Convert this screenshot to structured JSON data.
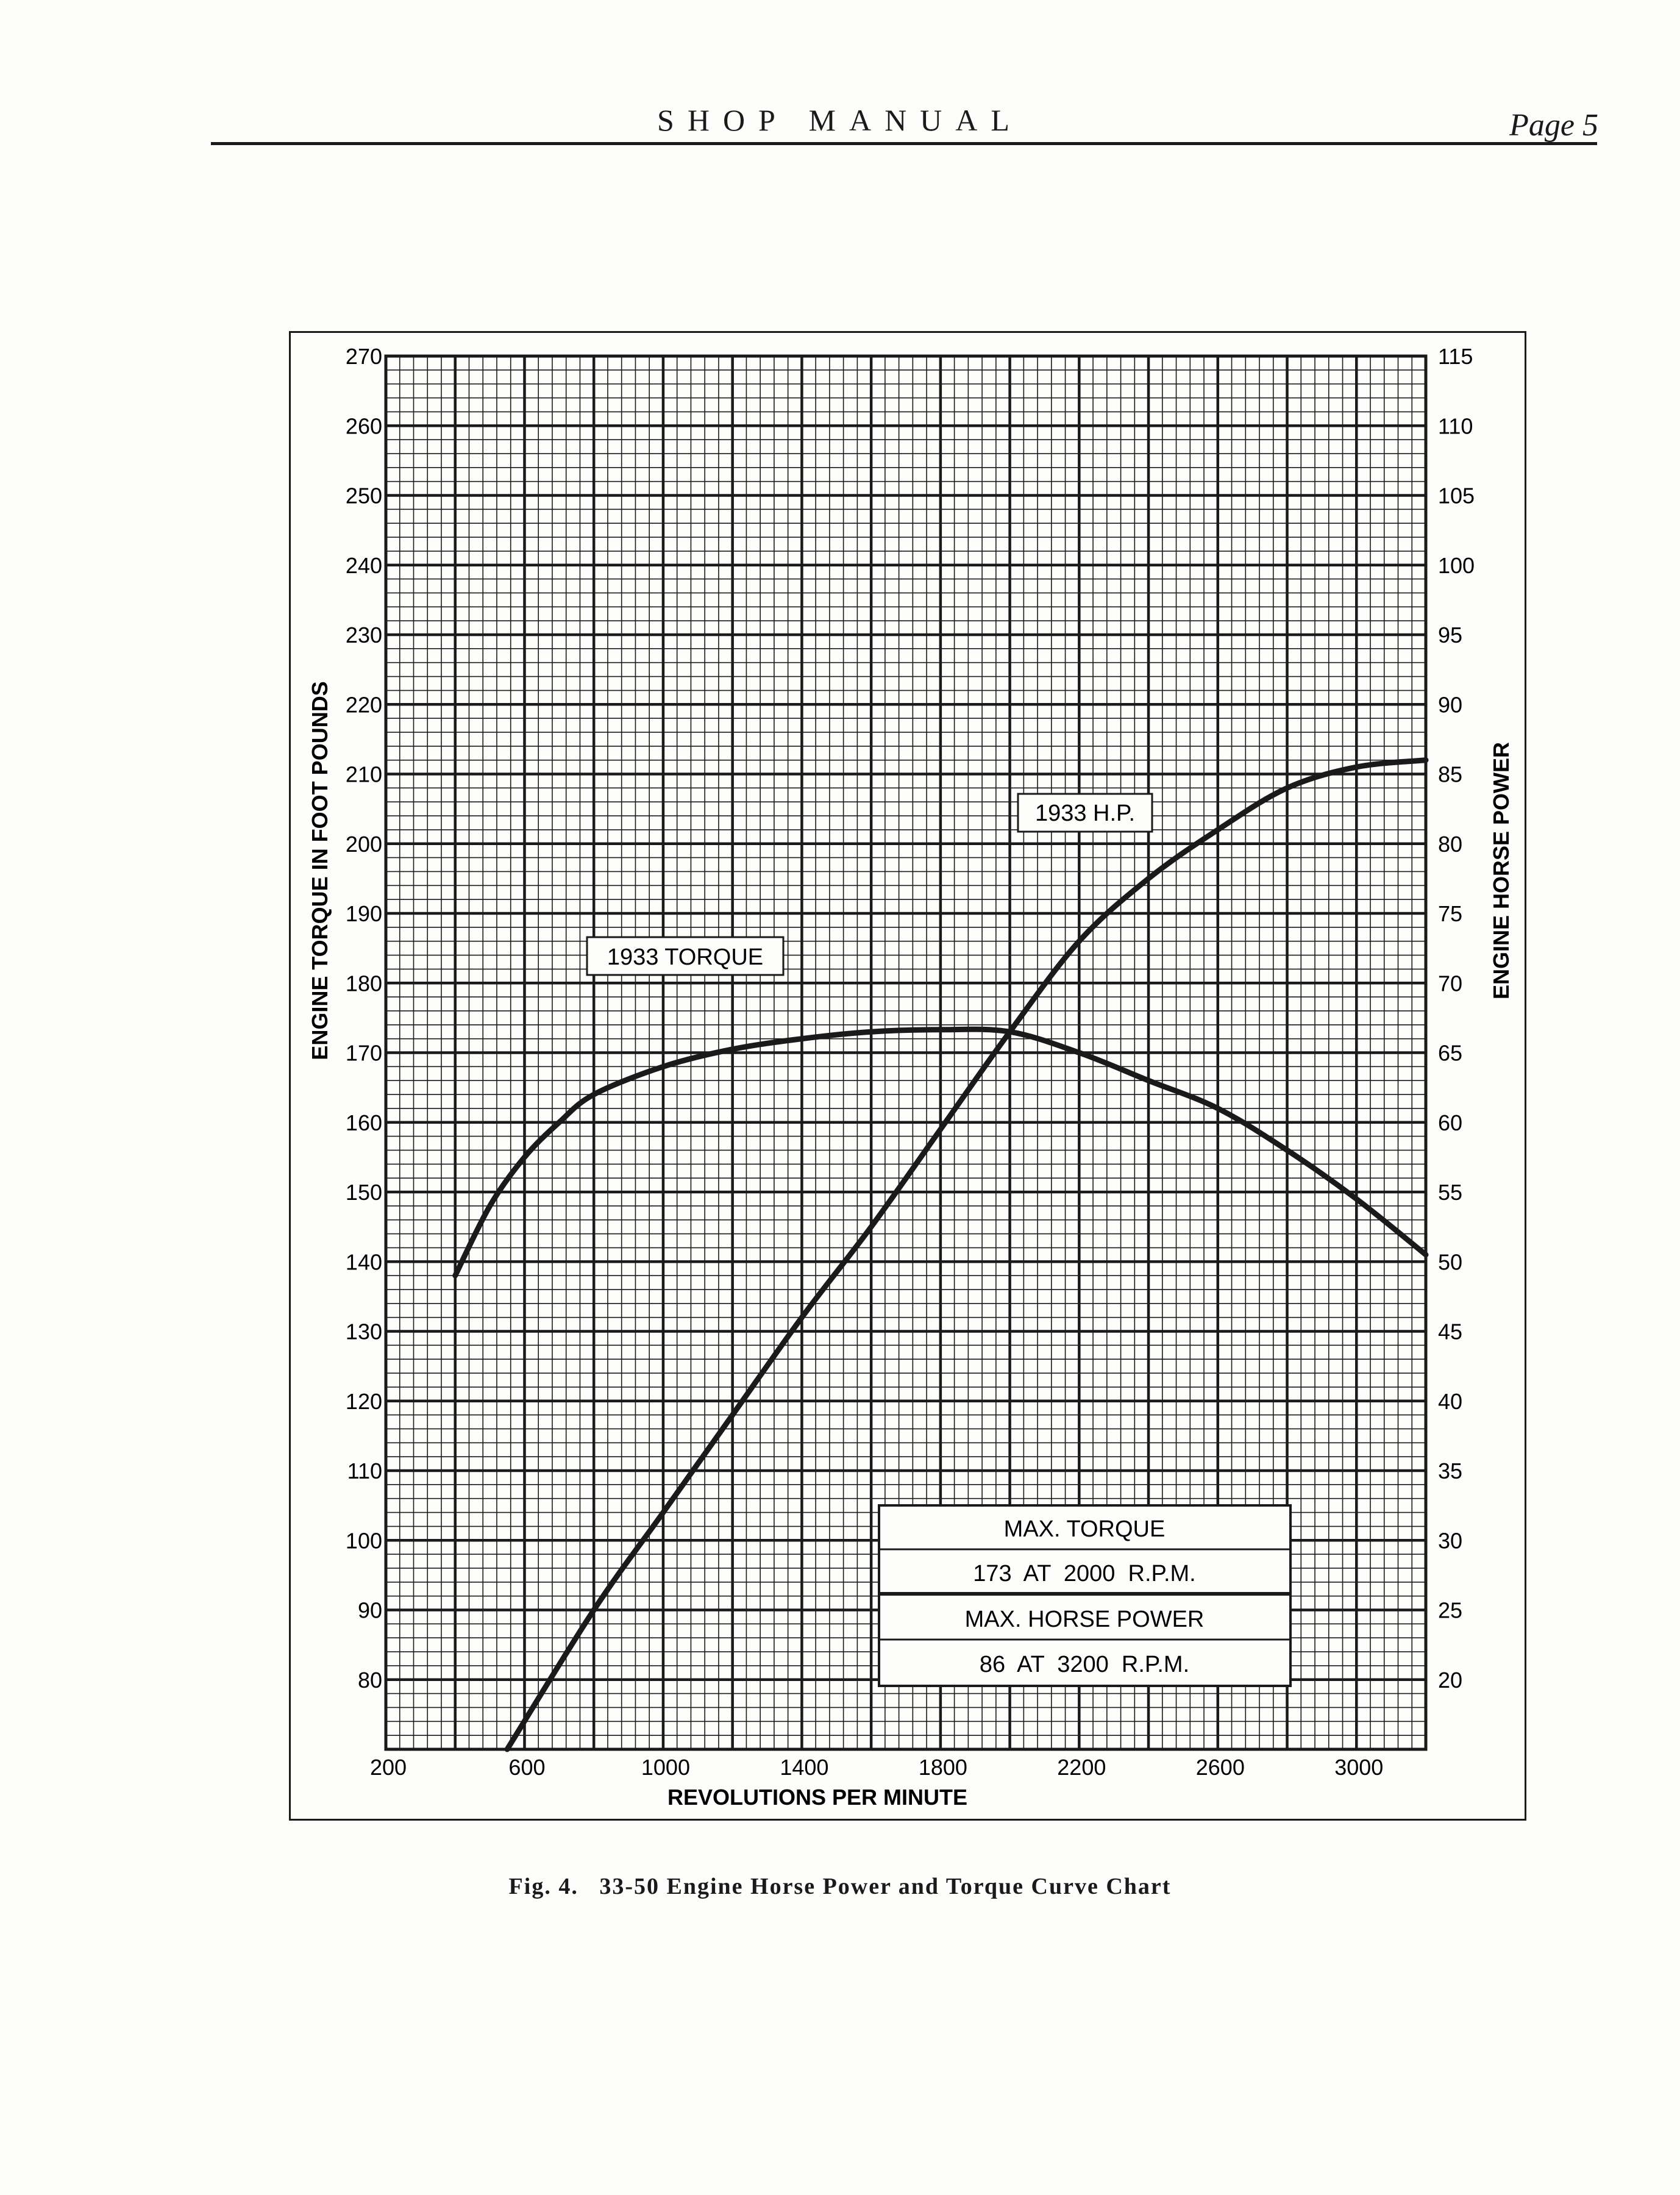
{
  "page": {
    "header_title": "SHOP MANUAL",
    "page_label": "Page 5",
    "caption": "Fig. 4.   33-50 Engine Horse Power and Torque Curve Chart"
  },
  "chart_data": {
    "type": "line",
    "x": {
      "label": "REVOLUTIONS PER MINUTE",
      "range": [
        200,
        3200
      ],
      "ticks": [
        200,
        600,
        1000,
        1400,
        1800,
        2200,
        2600,
        3000
      ],
      "tick_labels": [
        "200",
        "600",
        "1000",
        "1400",
        "1800",
        "2200",
        "2600",
        "3000"
      ]
    },
    "y_left": {
      "label": "ENGINE TORQUE IN FOOT POUNDS",
      "range": [
        70,
        270
      ],
      "ticks": [
        80,
        90,
        100,
        110,
        120,
        130,
        140,
        150,
        160,
        170,
        180,
        190,
        200,
        210,
        220,
        230,
        240,
        250,
        260,
        270
      ],
      "tick_labels": [
        "80",
        "90",
        "100",
        "110",
        "120",
        "130",
        "140",
        "150",
        "160",
        "170",
        "180",
        "190",
        "200",
        "210",
        "220",
        "230",
        "240",
        "250",
        "260",
        "270"
      ]
    },
    "y_right": {
      "label": "ENGINE HORSE POWER",
      "range": [
        15,
        115
      ],
      "ticks": [
        20,
        25,
        30,
        35,
        40,
        45,
        50,
        55,
        60,
        65,
        70,
        75,
        80,
        85,
        90,
        95,
        100,
        105,
        110,
        115
      ],
      "tick_labels": [
        "20",
        "25",
        "30",
        "35",
        "40",
        "45",
        "50",
        "55",
        "60",
        "65",
        "70",
        "75",
        "80",
        "85",
        "90",
        "95",
        "100",
        "105",
        "110",
        "115"
      ]
    },
    "grid": true,
    "series": [
      {
        "name": "1933 TORQUE",
        "axis": "left",
        "x": [
          400,
          500,
          600,
          700,
          800,
          1000,
          1200,
          1400,
          1600,
          1800,
          2000,
          2200,
          2400,
          2600,
          2800,
          3000,
          3200
        ],
        "y": [
          138,
          148,
          155,
          160,
          164,
          168,
          170.5,
          172,
          173,
          173.3,
          173,
          170,
          166,
          162,
          156,
          149,
          141
        ]
      },
      {
        "name": "1933 H.P.",
        "axis": "right",
        "x": [
          550,
          800,
          1000,
          1200,
          1400,
          1600,
          1800,
          2000,
          2200,
          2400,
          2600,
          2800,
          3000,
          3200
        ],
        "y": [
          15,
          25,
          32,
          39,
          46,
          52.5,
          59.5,
          66.5,
          73,
          77.5,
          81,
          84,
          85.5,
          86
        ]
      }
    ],
    "annotations": {
      "torque_label": "1933 TORQUE",
      "hp_label": "1933 H.P.",
      "box_lines": [
        "MAX. TORQUE",
        "173  AT  2000  R.P.M.",
        "MAX. HORSE POWER",
        "86  AT  3200  R.P.M."
      ]
    }
  },
  "colors": {
    "ink": "#1a1a1a",
    "paper": "#fdfdfb"
  }
}
